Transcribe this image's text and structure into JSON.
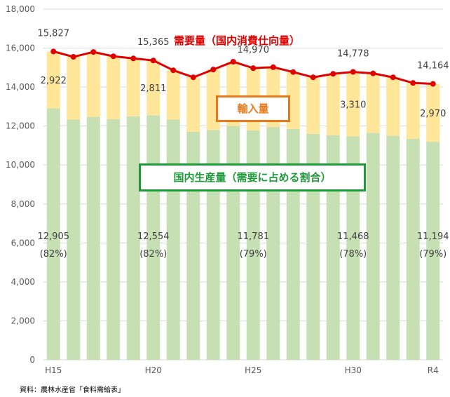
{
  "chart_data": {
    "type": "bar",
    "stacked": true,
    "categories": [
      "H15",
      "H16",
      "H17",
      "H18",
      "H19",
      "H20",
      "H21",
      "H22",
      "H23",
      "H24",
      "H25",
      "H26",
      "H27",
      "H28",
      "H29",
      "H30",
      "R1",
      "R2",
      "R3",
      "R4"
    ],
    "x_tick_labels": [
      "H15",
      "H20",
      "H25",
      "H30",
      "R4"
    ],
    "series": [
      {
        "name": "国内生産量",
        "color": "#c6e0b4",
        "values": [
          12905,
          12330,
          12470,
          12350,
          12500,
          12554,
          12330,
          11700,
          11800,
          12000,
          11781,
          11950,
          11850,
          11600,
          11530,
          11468,
          11650,
          11500,
          11340,
          11194
        ]
      },
      {
        "name": "輸入量",
        "color": "#ffe699",
        "values": [
          2922,
          3220,
          3330,
          3230,
          2970,
          2811,
          2530,
          2800,
          3100,
          3300,
          3189,
          3070,
          2920,
          2900,
          3150,
          3310,
          3050,
          3000,
          2870,
          2970
        ]
      }
    ],
    "line": {
      "name": "需要量",
      "color": "#e00000",
      "values": [
        15827,
        15550,
        15800,
        15580,
        15470,
        15365,
        14860,
        14500,
        14900,
        15300,
        14970,
        15020,
        14770,
        14500,
        14680,
        14778,
        14700,
        14500,
        14210,
        14164
      ]
    },
    "yaxis": {
      "min": 0,
      "max": 18000,
      "step": 2000,
      "tick_labels": [
        "0",
        "2,000",
        "4,000",
        "6,000",
        "8,000",
        "10,000",
        "12,000",
        "14,000",
        "16,000",
        "18,000"
      ]
    },
    "demand_labels": [
      {
        "index": 0,
        "text": "15,827"
      },
      {
        "index": 5,
        "text": "15,365"
      },
      {
        "index": 10,
        "text": "14,970"
      },
      {
        "index": 15,
        "text": "14,778"
      },
      {
        "index": 19,
        "text": "14,164"
      }
    ],
    "import_labels": [
      {
        "index": 0,
        "text": "2,922"
      },
      {
        "index": 5,
        "text": "2,811"
      },
      {
        "index": 10,
        "text": "3,189"
      },
      {
        "index": 15,
        "text": "3,310"
      },
      {
        "index": 19,
        "text": "2,970"
      }
    ],
    "domestic_labels": [
      {
        "index": 0,
        "text": "12,905",
        "pct": "(82%)"
      },
      {
        "index": 5,
        "text": "12,554",
        "pct": "(82%)"
      },
      {
        "index": 10,
        "text": "11,781",
        "pct": "(79%)"
      },
      {
        "index": 15,
        "text": "11,468",
        "pct": "(78%)"
      },
      {
        "index": 19,
        "text": "11,194",
        "pct": "(79%)"
      }
    ]
  },
  "labels": {
    "demand": "需要量（国内消費仕向量）",
    "import": "輸入量",
    "domestic": "国内生産量（需要に占める割合）"
  },
  "source": "資料：農林水産省「食料需給表」"
}
